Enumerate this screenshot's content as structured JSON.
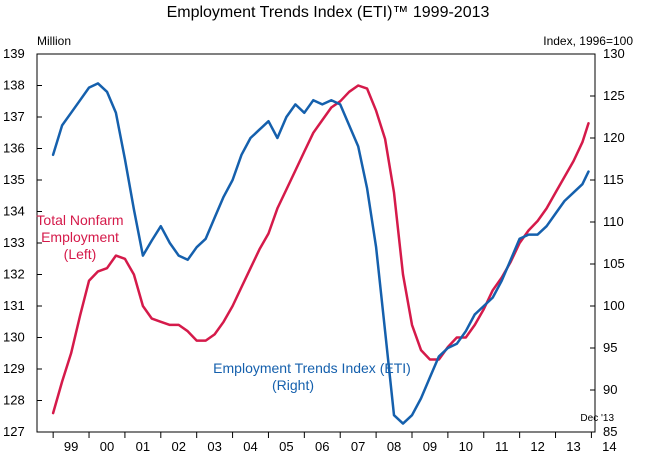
{
  "chart_data": {
    "type": "line",
    "title": "Employment Trends Index (ETI)™ 1999-2013",
    "left_axis_label": "Million",
    "right_axis_label": "Index, 1996=100",
    "left_ylim": [
      127,
      139
    ],
    "right_ylim": [
      85,
      130
    ],
    "left_ticks": [
      127,
      128,
      129,
      130,
      131,
      132,
      133,
      134,
      135,
      136,
      137,
      138,
      139
    ],
    "right_ticks": [
      85,
      90,
      95,
      100,
      105,
      110,
      115,
      120,
      125,
      130
    ],
    "x_tick_labels": [
      "99",
      "00",
      "01",
      "02",
      "03",
      "04",
      "05",
      "06",
      "07",
      "08",
      "09",
      "10",
      "11",
      "12",
      "13",
      "14"
    ],
    "note": "Dec '13",
    "grid": false,
    "colors": {
      "nonfarm": "#d51a4a",
      "eti": "#1560ad"
    },
    "annotations": {
      "nonfarm": [
        "Total Nonfarm",
        "Employment",
        "(Left)"
      ],
      "eti": [
        "Employment Trends Index (ETI)",
        "(Right)"
      ]
    },
    "series": [
      {
        "key": "nonfarm",
        "axis": "left",
        "x": [
          1999.0,
          1999.25,
          1999.5,
          1999.75,
          2000.0,
          2000.25,
          2000.5,
          2000.75,
          2001.0,
          2001.25,
          2001.5,
          2001.75,
          2002.0,
          2002.25,
          2002.5,
          2002.75,
          2003.0,
          2003.25,
          2003.5,
          2003.75,
          2004.0,
          2004.25,
          2004.5,
          2004.75,
          2005.0,
          2005.25,
          2005.5,
          2005.75,
          2006.0,
          2006.25,
          2006.5,
          2006.75,
          2007.0,
          2007.25,
          2007.5,
          2007.75,
          2008.0,
          2008.25,
          2008.5,
          2008.75,
          2009.0,
          2009.25,
          2009.5,
          2009.75,
          2010.0,
          2010.25,
          2010.5,
          2010.75,
          2011.0,
          2011.25,
          2011.5,
          2011.75,
          2012.0,
          2012.25,
          2012.5,
          2012.75,
          2013.0,
          2013.25,
          2013.5,
          2013.75,
          2013.92
        ],
        "values": [
          127.6,
          128.6,
          129.5,
          130.7,
          131.8,
          132.1,
          132.2,
          132.6,
          132.5,
          132.0,
          131.0,
          130.6,
          130.5,
          130.4,
          130.4,
          130.2,
          129.9,
          129.9,
          130.1,
          130.5,
          131.0,
          131.6,
          132.2,
          132.8,
          133.3,
          134.1,
          134.7,
          135.3,
          135.9,
          136.5,
          136.9,
          137.3,
          137.5,
          137.8,
          138.0,
          137.9,
          137.2,
          136.3,
          134.6,
          132.0,
          130.4,
          129.6,
          129.3,
          129.3,
          129.7,
          130.0,
          130.0,
          130.4,
          130.9,
          131.5,
          131.9,
          132.4,
          133.0,
          133.4,
          133.7,
          134.1,
          134.6,
          135.1,
          135.6,
          136.2,
          136.8
        ]
      },
      {
        "key": "eti",
        "axis": "right",
        "x": [
          1999.0,
          1999.25,
          1999.5,
          1999.75,
          2000.0,
          2000.25,
          2000.5,
          2000.75,
          2001.0,
          2001.25,
          2001.5,
          2001.75,
          2002.0,
          2002.25,
          2002.5,
          2002.75,
          2003.0,
          2003.25,
          2003.5,
          2003.75,
          2004.0,
          2004.25,
          2004.5,
          2004.75,
          2005.0,
          2005.25,
          2005.5,
          2005.75,
          2006.0,
          2006.25,
          2006.5,
          2006.75,
          2007.0,
          2007.25,
          2007.5,
          2007.75,
          2008.0,
          2008.25,
          2008.5,
          2008.75,
          2009.0,
          2009.25,
          2009.5,
          2009.75,
          2010.0,
          2010.25,
          2010.5,
          2010.75,
          2011.0,
          2011.25,
          2011.5,
          2011.75,
          2012.0,
          2012.25,
          2012.5,
          2012.75,
          2013.0,
          2013.25,
          2013.5,
          2013.75,
          2013.92
        ],
        "values": [
          118.0,
          121.5,
          123.0,
          124.5,
          126.0,
          126.5,
          125.5,
          123.0,
          117.5,
          111.5,
          106.0,
          107.8,
          109.5,
          107.5,
          106.0,
          105.5,
          107.0,
          108.0,
          110.5,
          113.0,
          115.0,
          118.0,
          120.0,
          121.0,
          122.0,
          120.0,
          122.5,
          124.0,
          123.0,
          124.5,
          124.0,
          124.5,
          124.0,
          121.5,
          119.0,
          114.0,
          107.0,
          97.0,
          87.0,
          86.0,
          87.0,
          89.0,
          91.5,
          94.0,
          95.0,
          95.5,
          97.0,
          99.0,
          100.0,
          101.0,
          103.0,
          105.5,
          108.0,
          108.5,
          108.5,
          109.5,
          111.0,
          112.5,
          113.5,
          114.5,
          116.0
        ]
      }
    ]
  }
}
